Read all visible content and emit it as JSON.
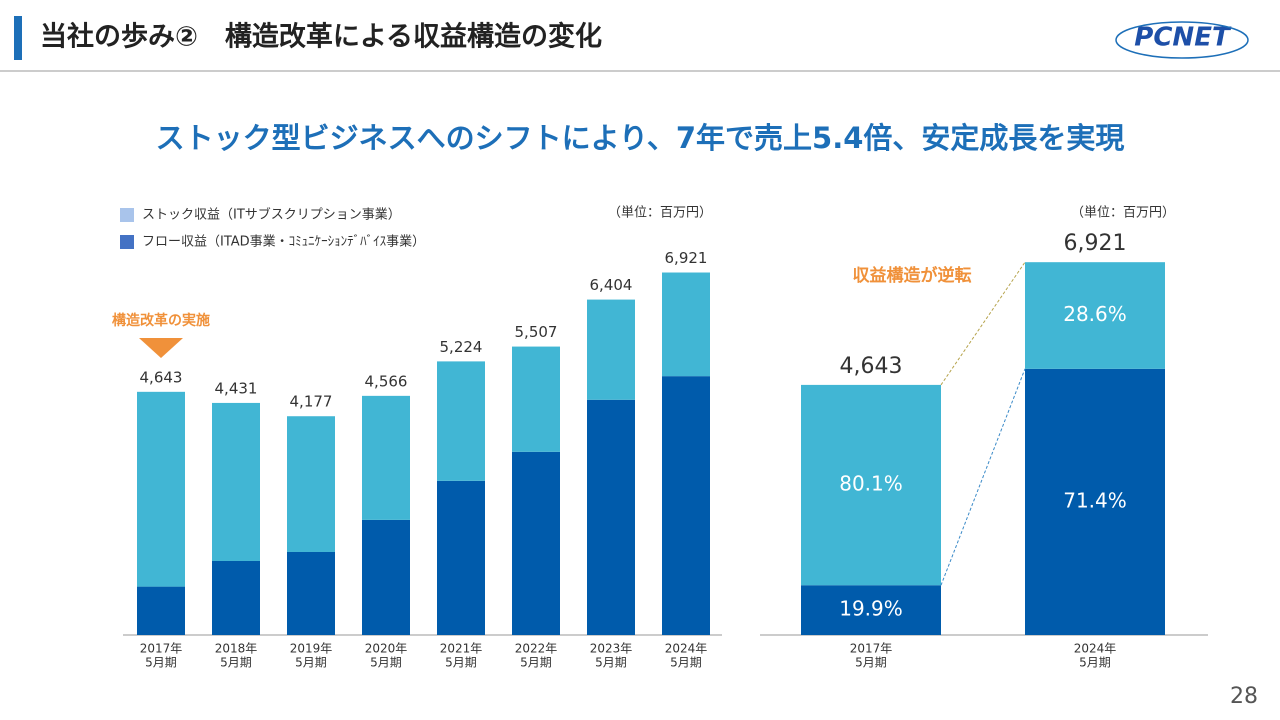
{
  "header": {
    "title": "当社の歩み②　構造改革による収益構造の変化",
    "logo": "PCNET"
  },
  "headline": "ストック型ビジネスへのシフトにより、7年で売上5.4倍、安定成長を実現",
  "page_number": "28",
  "chart_data": [
    {
      "type": "stacked_bar",
      "unit_label": "（単位：百万円）",
      "annotation": "構造改革の実施",
      "categories": [
        [
          "2017年",
          "5月期"
        ],
        [
          "2018年",
          "5月期"
        ],
        [
          "2019年",
          "5月期"
        ],
        [
          "2020年",
          "5月期"
        ],
        [
          "2021年",
          "5月期"
        ],
        [
          "2022年",
          "5月期"
        ],
        [
          "2023年",
          "5月期"
        ],
        [
          "2024年",
          "5月期"
        ]
      ],
      "series": [
        {
          "name": "ストック収益（ITサブスクリプション事業）",
          "color": "#005bab",
          "legend_color": "#a9c4eb",
          "values": [
            924,
            1413,
            1585,
            2198,
            2943,
            3497,
            4491,
            4942
          ]
        },
        {
          "name": "フロー収益（ITAD事業・ｺﾐｭﾆｹｰｼｮﾝﾃﾞﾊﾞｲｽ事業）",
          "color": "#41b6d4",
          "legend_color": "#4472c4",
          "values": [
            3719,
            3018,
            2592,
            2368,
            2281,
            2010,
            1913,
            1979
          ]
        }
      ],
      "totals": [
        4643,
        4431,
        4177,
        4566,
        5224,
        5507,
        6404,
        6921
      ],
      "total_labels": [
        "4,643",
        "4,431",
        "4,177",
        "4,566",
        "5,224",
        "5,507",
        "6,404",
        "6,921"
      ],
      "ylim": [
        0,
        8000
      ]
    },
    {
      "type": "share_bar",
      "unit_label": "（単位：百万円）",
      "annotation": "収益構造が逆転",
      "categories": [
        [
          "2017年",
          "5月期"
        ],
        [
          "2024年",
          "5月期"
        ]
      ],
      "series": [
        {
          "color": "#005bab",
          "values": [
            19.9,
            71.4
          ],
          "value_labels": [
            "19.9%",
            "71.4%"
          ]
        },
        {
          "color": "#41b6d4",
          "values": [
            80.1,
            28.6
          ],
          "value_labels": [
            "80.1%",
            "28.6%"
          ]
        }
      ],
      "totals": [
        4643,
        6921
      ],
      "total_labels": [
        "4,643",
        "6,921"
      ],
      "ylim": [
        0,
        7500
      ]
    }
  ]
}
